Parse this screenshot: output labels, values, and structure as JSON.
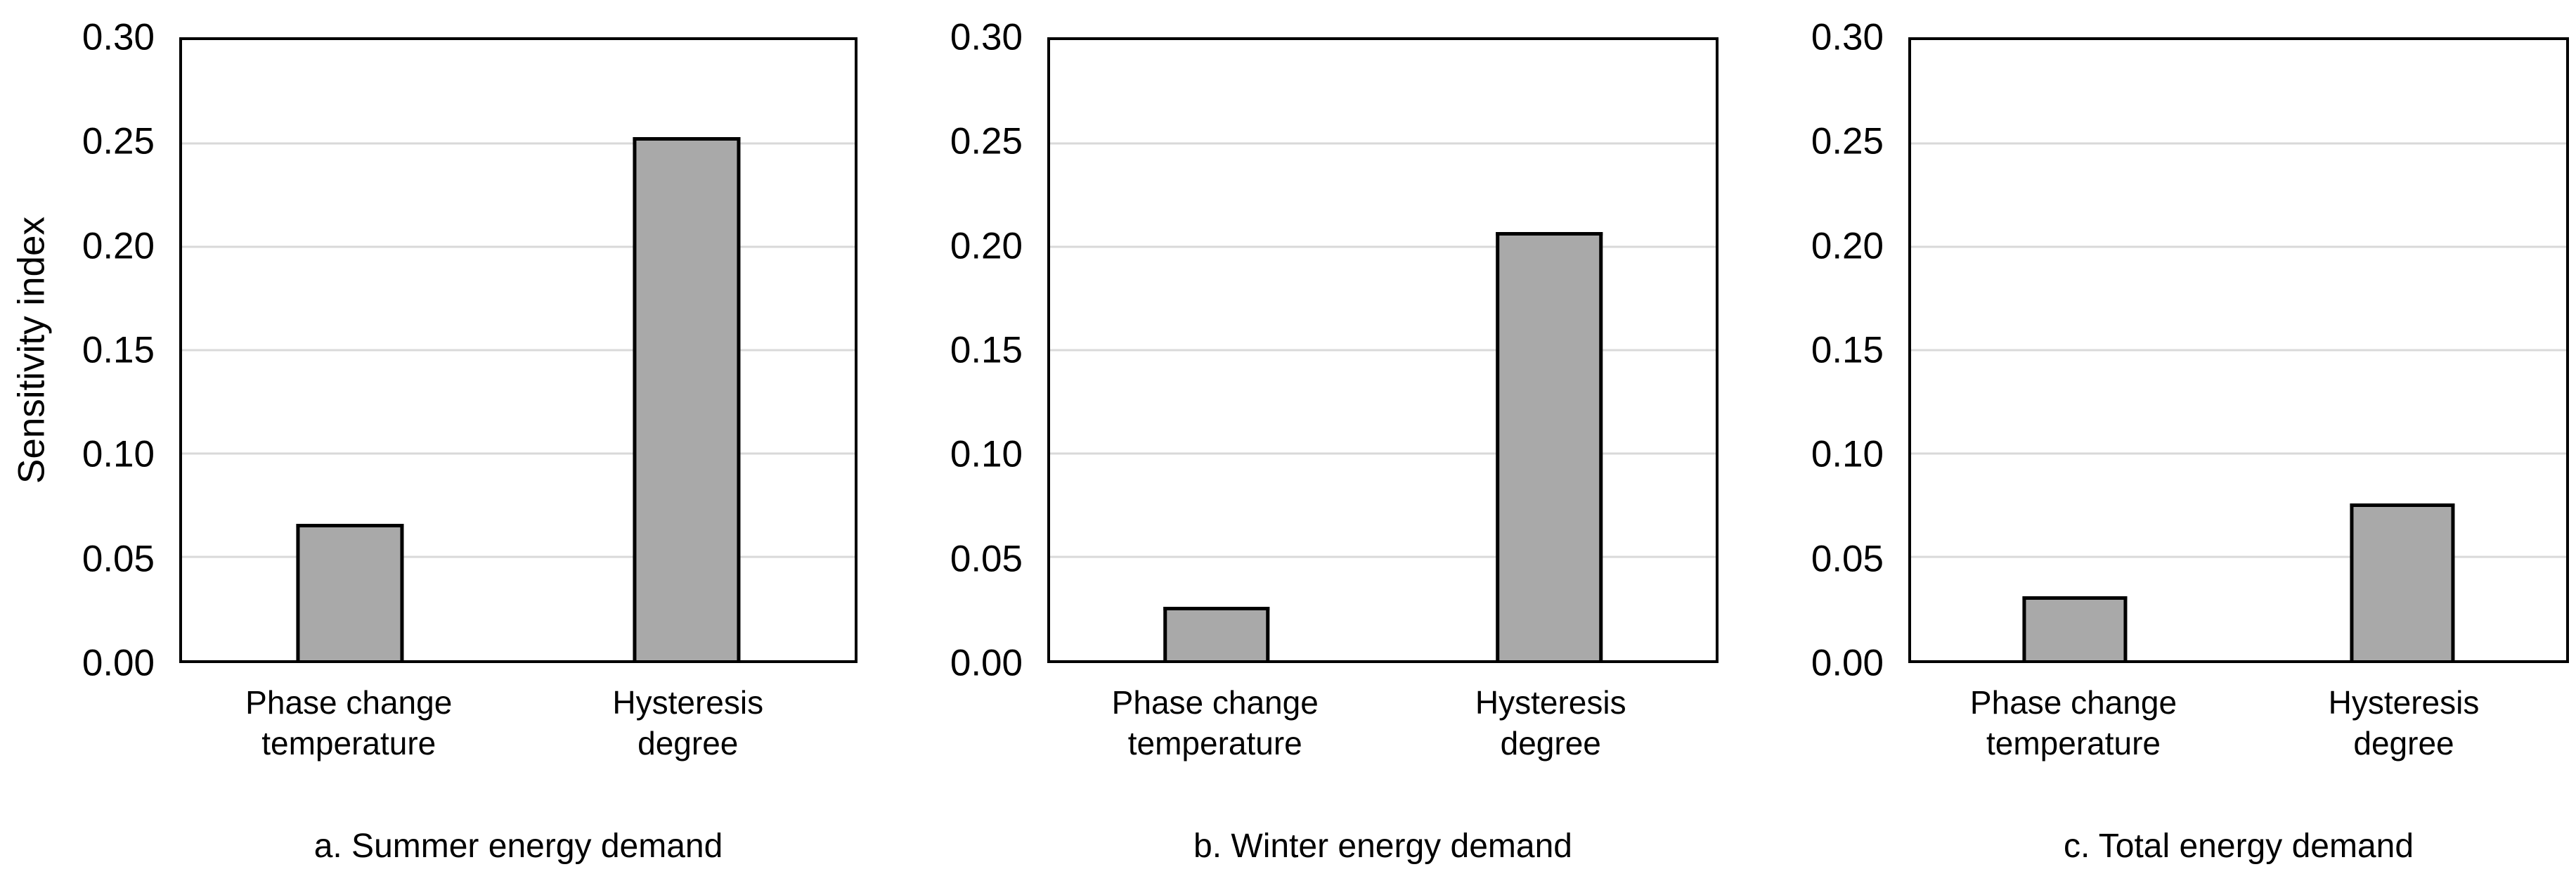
{
  "figure": {
    "background_color": "#ffffff",
    "text_color": "#000000"
  },
  "chart_data": [
    {
      "type": "bar",
      "title": "a. Summer energy demand",
      "ylabel": "Sensitivity index",
      "xlabel": "",
      "categories": [
        "Phase change\ntemperature",
        "Hysteresis\ndegree"
      ],
      "values": [
        0.066,
        0.253
      ],
      "ylim": [
        0,
        0.3
      ],
      "ytick_labels": [
        "0.00",
        "0.05",
        "0.10",
        "0.15",
        "0.20",
        "0.25",
        "0.30"
      ],
      "grid": true,
      "legend": "none",
      "bar_color": "#a9a9a9",
      "bar_border_color": "#000000",
      "gridline_color": "#d9d9d9"
    },
    {
      "type": "bar",
      "title": "b. Winter energy demand",
      "ylabel": "",
      "xlabel": "",
      "categories": [
        "Phase change\ntemperature",
        "Hysteresis\ndegree"
      ],
      "values": [
        0.026,
        0.207
      ],
      "ylim": [
        0,
        0.3
      ],
      "ytick_labels": [
        "0.00",
        "0.05",
        "0.10",
        "0.15",
        "0.20",
        "0.25",
        "0.30"
      ],
      "grid": true,
      "legend": "none",
      "bar_color": "#a9a9a9",
      "bar_border_color": "#000000",
      "gridline_color": "#d9d9d9"
    },
    {
      "type": "bar",
      "title": "c. Total energy demand",
      "ylabel": "",
      "xlabel": "",
      "categories": [
        "Phase change\ntemperature",
        "Hysteresis\ndegree"
      ],
      "values": [
        0.031,
        0.076
      ],
      "ylim": [
        0,
        0.3
      ],
      "ytick_labels": [
        "0.00",
        "0.05",
        "0.10",
        "0.15",
        "0.20",
        "0.25",
        "0.30"
      ],
      "grid": true,
      "legend": "none",
      "bar_color": "#a9a9a9",
      "bar_border_color": "#000000",
      "gridline_color": "#d9d9d9"
    }
  ]
}
